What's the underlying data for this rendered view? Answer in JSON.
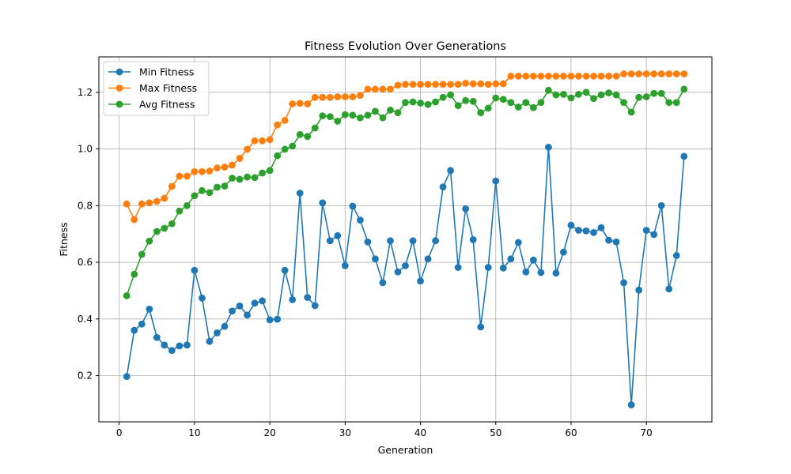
{
  "chart_data": {
    "type": "line",
    "title": "Fitness Evolution Over Generations",
    "xlabel": "Generation",
    "ylabel": "Fitness",
    "xlim": [
      -2.7,
      78.7
    ],
    "ylim": [
      0.037,
      1.325
    ],
    "xticks": [
      0,
      10,
      20,
      30,
      40,
      50,
      60,
      70
    ],
    "yticks": [
      0.2,
      0.4,
      0.6,
      0.8,
      1.0,
      1.2
    ],
    "ytick_labels": [
      "0.2",
      "0.4",
      "0.6",
      "0.8",
      "1.0",
      "1.2"
    ],
    "grid": true,
    "legend": "top-left",
    "x": [
      1,
      2,
      3,
      4,
      5,
      6,
      7,
      8,
      9,
      10,
      11,
      12,
      13,
      14,
      15,
      16,
      17,
      18,
      19,
      20,
      21,
      22,
      23,
      24,
      25,
      26,
      27,
      28,
      29,
      30,
      31,
      32,
      33,
      34,
      35,
      36,
      37,
      38,
      39,
      40,
      41,
      42,
      43,
      44,
      45,
      46,
      47,
      48,
      49,
      50,
      51,
      52,
      53,
      54,
      55,
      56,
      57,
      58,
      59,
      60,
      61,
      62,
      63,
      64,
      65,
      66,
      67,
      68,
      69,
      70,
      71,
      72,
      73,
      74,
      75
    ],
    "series": [
      {
        "name": "Min Fitness",
        "color": "#1f77b4",
        "values": [
          0.197,
          0.36,
          0.382,
          0.435,
          0.335,
          0.308,
          0.289,
          0.305,
          0.308,
          0.572,
          0.474,
          0.321,
          0.351,
          0.374,
          0.428,
          0.446,
          0.414,
          0.456,
          0.464,
          0.397,
          0.399,
          0.572,
          0.468,
          0.844,
          0.476,
          0.447,
          0.81,
          0.676,
          0.694,
          0.588,
          0.798,
          0.749,
          0.672,
          0.612,
          0.528,
          0.676,
          0.566,
          0.588,
          0.676,
          0.534,
          0.612,
          0.676,
          0.866,
          0.924,
          0.582,
          0.789,
          0.68,
          0.372,
          0.582,
          0.887,
          0.58,
          0.612,
          0.67,
          0.566,
          0.608,
          0.564,
          1.006,
          0.562,
          0.636,
          0.731,
          0.713,
          0.711,
          0.705,
          0.722,
          0.678,
          0.672,
          0.528,
          0.097,
          0.502,
          0.713,
          0.698,
          0.8,
          0.506,
          0.624,
          0.974
        ]
      },
      {
        "name": "Max Fitness",
        "color": "#ff7f0e",
        "values": [
          0.806,
          0.751,
          0.806,
          0.81,
          0.815,
          0.826,
          0.868,
          0.904,
          0.904,
          0.92,
          0.92,
          0.922,
          0.933,
          0.936,
          0.943,
          0.967,
          0.999,
          1.029,
          1.029,
          1.033,
          1.085,
          1.101,
          1.159,
          1.161,
          1.159,
          1.182,
          1.182,
          1.182,
          1.184,
          1.184,
          1.184,
          1.189,
          1.211,
          1.211,
          1.211,
          1.211,
          1.225,
          1.228,
          1.228,
          1.228,
          1.228,
          1.228,
          1.228,
          1.228,
          1.228,
          1.232,
          1.23,
          1.23,
          1.228,
          1.23,
          1.23,
          1.257,
          1.257,
          1.257,
          1.257,
          1.257,
          1.257,
          1.257,
          1.257,
          1.257,
          1.257,
          1.257,
          1.257,
          1.257,
          1.257,
          1.257,
          1.265,
          1.265,
          1.265,
          1.265,
          1.265,
          1.265,
          1.265,
          1.265,
          1.265
        ]
      },
      {
        "name": "Avg Fitness",
        "color": "#2ca02c",
        "values": [
          0.482,
          0.558,
          0.628,
          0.675,
          0.709,
          0.72,
          0.736,
          0.781,
          0.8,
          0.835,
          0.853,
          0.846,
          0.865,
          0.869,
          0.897,
          0.893,
          0.901,
          0.899,
          0.915,
          0.924,
          0.976,
          0.999,
          1.01,
          1.051,
          1.044,
          1.074,
          1.117,
          1.114,
          1.098,
          1.121,
          1.119,
          1.11,
          1.119,
          1.133,
          1.11,
          1.137,
          1.128,
          1.164,
          1.166,
          1.162,
          1.157,
          1.166,
          1.182,
          1.191,
          1.153,
          1.171,
          1.168,
          1.128,
          1.144,
          1.18,
          1.175,
          1.164,
          1.148,
          1.164,
          1.146,
          1.164,
          1.207,
          1.191,
          1.193,
          1.18,
          1.193,
          1.2,
          1.178,
          1.191,
          1.198,
          1.191,
          1.164,
          1.13,
          1.182,
          1.184,
          1.196,
          1.196,
          1.164,
          1.164,
          1.211
        ]
      }
    ]
  }
}
